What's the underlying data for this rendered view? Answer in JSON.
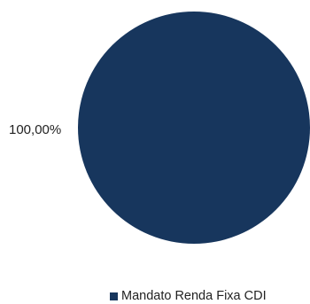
{
  "chart_data": {
    "type": "pie",
    "title": "",
    "slices": [
      {
        "name": "Mandato Renda Fixa CDI",
        "value": 100,
        "label": "100,00%",
        "color": "#17365d"
      }
    ],
    "legend": {
      "placement": "bottom-right",
      "entries": [
        "Mandato Renda Fixa CDI"
      ]
    }
  }
}
